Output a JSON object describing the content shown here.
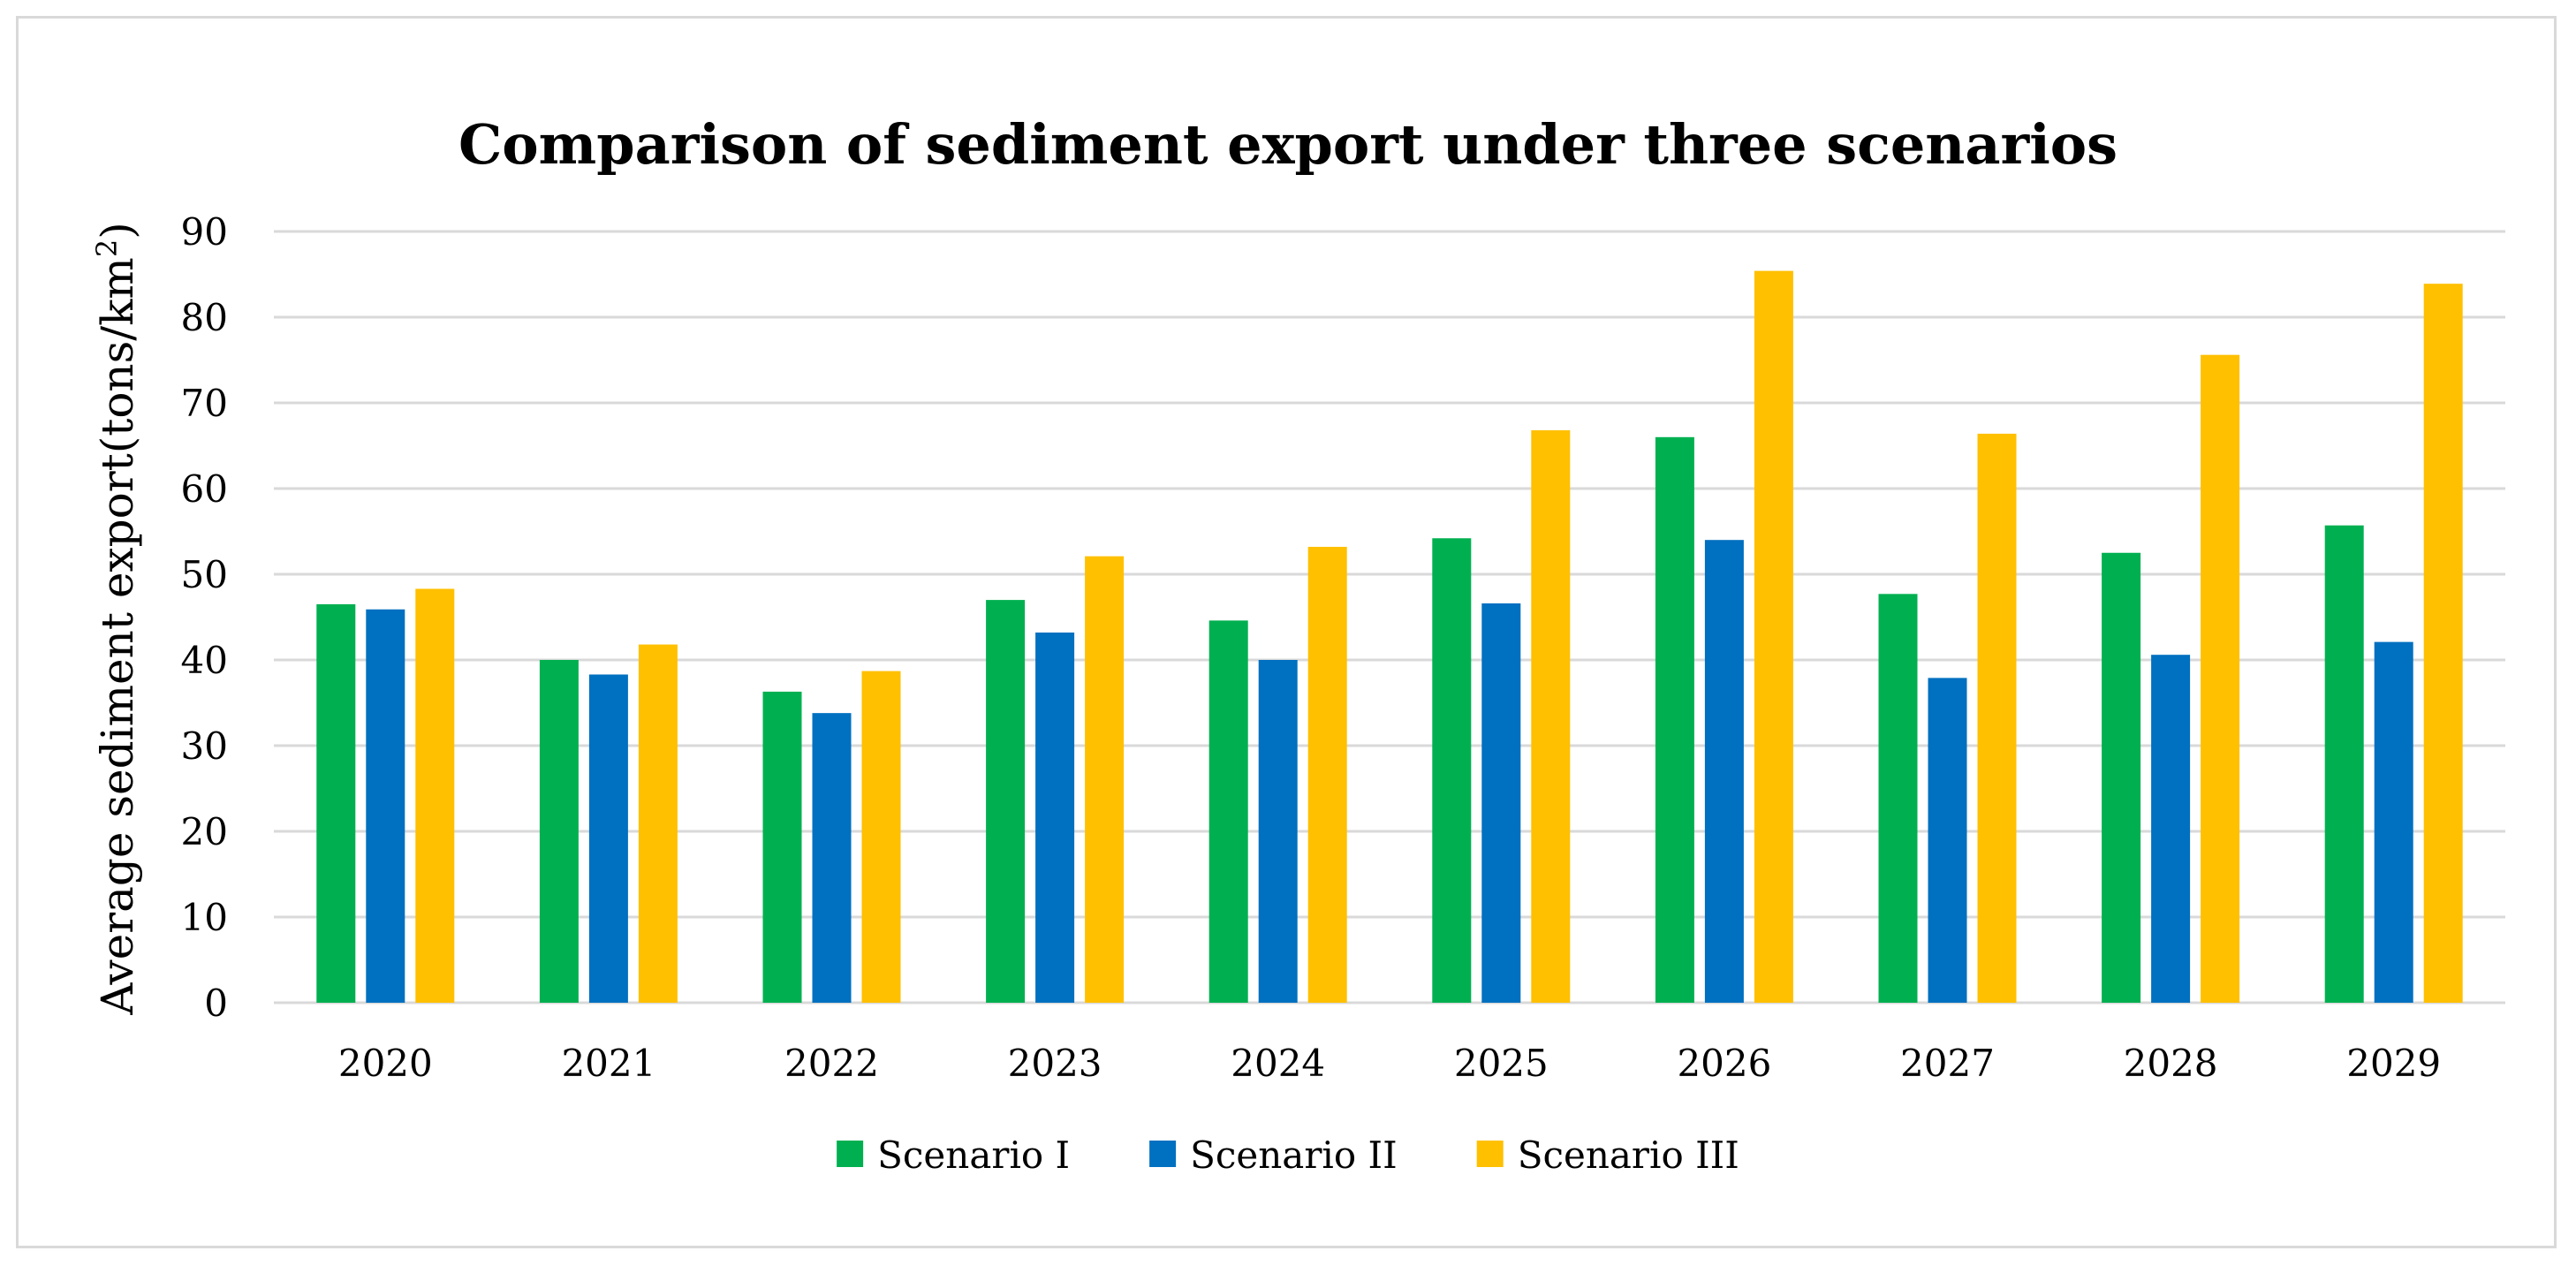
{
  "chart_data": {
    "type": "bar",
    "title": "Comparison of sediment export under three scenarios",
    "ylabel": "Average sediment export(tons/km²)",
    "ylabel_parts": {
      "main": "Average sediment export(tons/km",
      "sup": "2",
      "end": ")"
    },
    "xlabel": "",
    "ylim": [
      0,
      90
    ],
    "yticks": [
      0,
      10,
      20,
      30,
      40,
      50,
      60,
      70,
      80,
      90
    ],
    "grid": true,
    "legend_position": "bottom",
    "categories": [
      "2020",
      "2021",
      "2022",
      "2023",
      "2024",
      "2025",
      "2026",
      "2027",
      "2028",
      "2029"
    ],
    "series": [
      {
        "name": "Scenario I",
        "color": "#00b050",
        "values": [
          46.5,
          40.0,
          36.3,
          47.0,
          44.6,
          54.2,
          66.0,
          47.7,
          52.5,
          55.7
        ]
      },
      {
        "name": "Scenario II",
        "color": "#0070c0",
        "values": [
          45.9,
          38.3,
          33.8,
          43.2,
          40.0,
          46.6,
          54.0,
          37.9,
          40.6,
          42.1
        ]
      },
      {
        "name": "Scenario III",
        "color": "#ffc000",
        "values": [
          48.3,
          41.8,
          38.7,
          52.1,
          53.2,
          66.8,
          85.4,
          66.4,
          75.6,
          83.9
        ]
      }
    ]
  }
}
